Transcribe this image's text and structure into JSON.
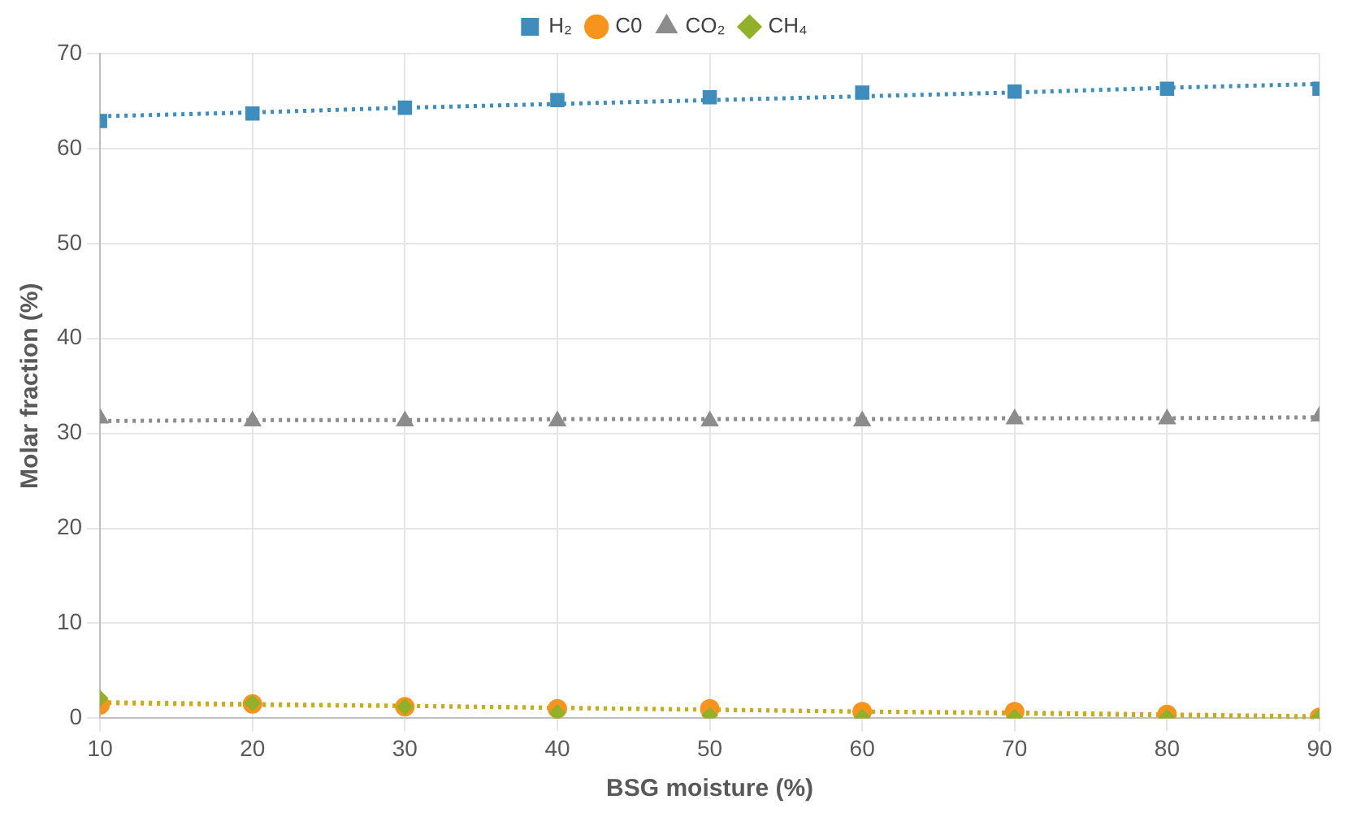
{
  "chart_data": {
    "type": "scatter",
    "xlabel": "BSG moisture (%)",
    "ylabel": "Molar fraction (%)",
    "x": [
      10,
      20,
      30,
      40,
      50,
      60,
      70,
      80,
      90
    ],
    "xlim": [
      10,
      90
    ],
    "xticks": [
      10,
      20,
      30,
      40,
      50,
      60,
      70,
      80,
      90
    ],
    "ylim": [
      0,
      70
    ],
    "yticks": [
      0,
      10,
      20,
      30,
      40,
      50,
      60,
      70
    ],
    "grid": true,
    "legend": "top",
    "series": [
      {
        "name": "H₂",
        "color": "#3e8dbc",
        "marker": "square",
        "values": [
          62.9,
          63.7,
          64.3,
          65.1,
          65.4,
          65.9,
          66.0,
          66.3,
          66.3
        ]
      },
      {
        "name": "C0",
        "color": "#f7941d",
        "marker": "circle",
        "values": [
          1.4,
          1.5,
          1.2,
          1.0,
          1.0,
          0.7,
          0.7,
          0.4,
          0.1
        ]
      },
      {
        "name": "CO₂",
        "color": "#8c8c8c",
        "marker": "triangle",
        "values": [
          31.6,
          31.3,
          31.3,
          31.3,
          31.3,
          31.3,
          31.5,
          31.5,
          31.8
        ]
      },
      {
        "name": "CH₄",
        "color": "#92b02a",
        "marker": "diamond",
        "values": [
          2.1,
          1.6,
          1.2,
          0.6,
          0.3,
          0.1,
          0.1,
          0.1,
          0.1
        ]
      },
      {
        "type": "line",
        "color": "#3e8dbc",
        "line_style": "dotted",
        "values": [
          63.4,
          63.8,
          64.3,
          64.7,
          65.1,
          65.5,
          65.9,
          66.4,
          66.8
        ]
      },
      {
        "type": "line",
        "color": "#f7941d",
        "line_style": "dotted",
        "values": [
          1.6,
          1.4,
          1.3,
          1.1,
          0.9,
          0.7,
          0.6,
          0.4,
          0.2
        ]
      },
      {
        "type": "line",
        "color": "#8c8c8c",
        "line_style": "dotted",
        "values": [
          31.3,
          31.4,
          31.4,
          31.5,
          31.5,
          31.5,
          31.6,
          31.6,
          31.7
        ]
      },
      {
        "type": "line",
        "color": "#c0b020",
        "line_style": "dotted",
        "values": [
          1.7,
          1.5,
          1.3,
          1.1,
          0.9,
          0.7,
          0.5,
          0.3,
          0.1
        ]
      }
    ]
  }
}
